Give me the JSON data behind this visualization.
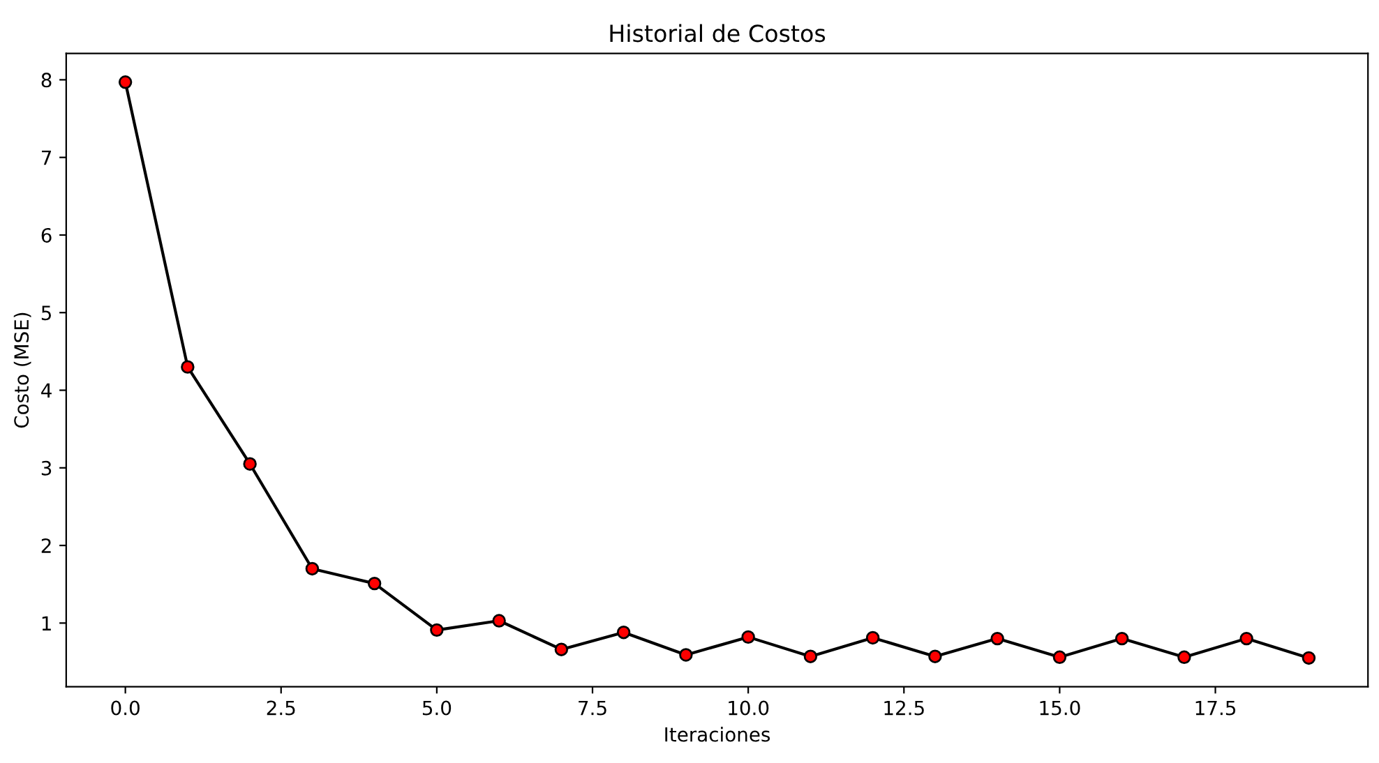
{
  "chart_data": {
    "type": "line",
    "title": "Historial de Costos",
    "xlabel": "Iteraciones",
    "ylabel": "Costo (MSE)",
    "x": [
      0,
      1,
      2,
      3,
      4,
      5,
      6,
      7,
      8,
      9,
      10,
      11,
      12,
      13,
      14,
      15,
      16,
      17,
      18,
      19
    ],
    "series": [
      {
        "color": "#000000",
        "values": [
          7.97,
          4.3,
          3.05,
          1.7,
          1.51,
          0.91,
          1.03,
          0.66,
          0.88,
          0.59,
          0.82,
          0.57,
          0.81,
          0.57,
          0.8,
          0.56,
          0.8,
          0.56,
          0.8,
          0.55
        ]
      }
    ],
    "marker": "circle",
    "line_style": "solid",
    "grid": false,
    "legend": false,
    "xlim": [
      -0.95,
      19.95
    ],
    "xticks": [
      {
        "value": 0,
        "label": "0.0"
      },
      {
        "value": 2.5,
        "label": "2.5"
      },
      {
        "value": 5,
        "label": "5.0"
      },
      {
        "value": 7.5,
        "label": "7.5"
      },
      {
        "value": 10,
        "label": "10.0"
      },
      {
        "value": 12.5,
        "label": "12.5"
      },
      {
        "value": 15,
        "label": "15.0"
      },
      {
        "value": 17.5,
        "label": "17.5"
      }
    ],
    "ylim": [
      0.18,
      8.34
    ],
    "yticks": [
      1,
      2,
      3,
      4,
      5,
      6,
      7,
      8
    ]
  }
}
